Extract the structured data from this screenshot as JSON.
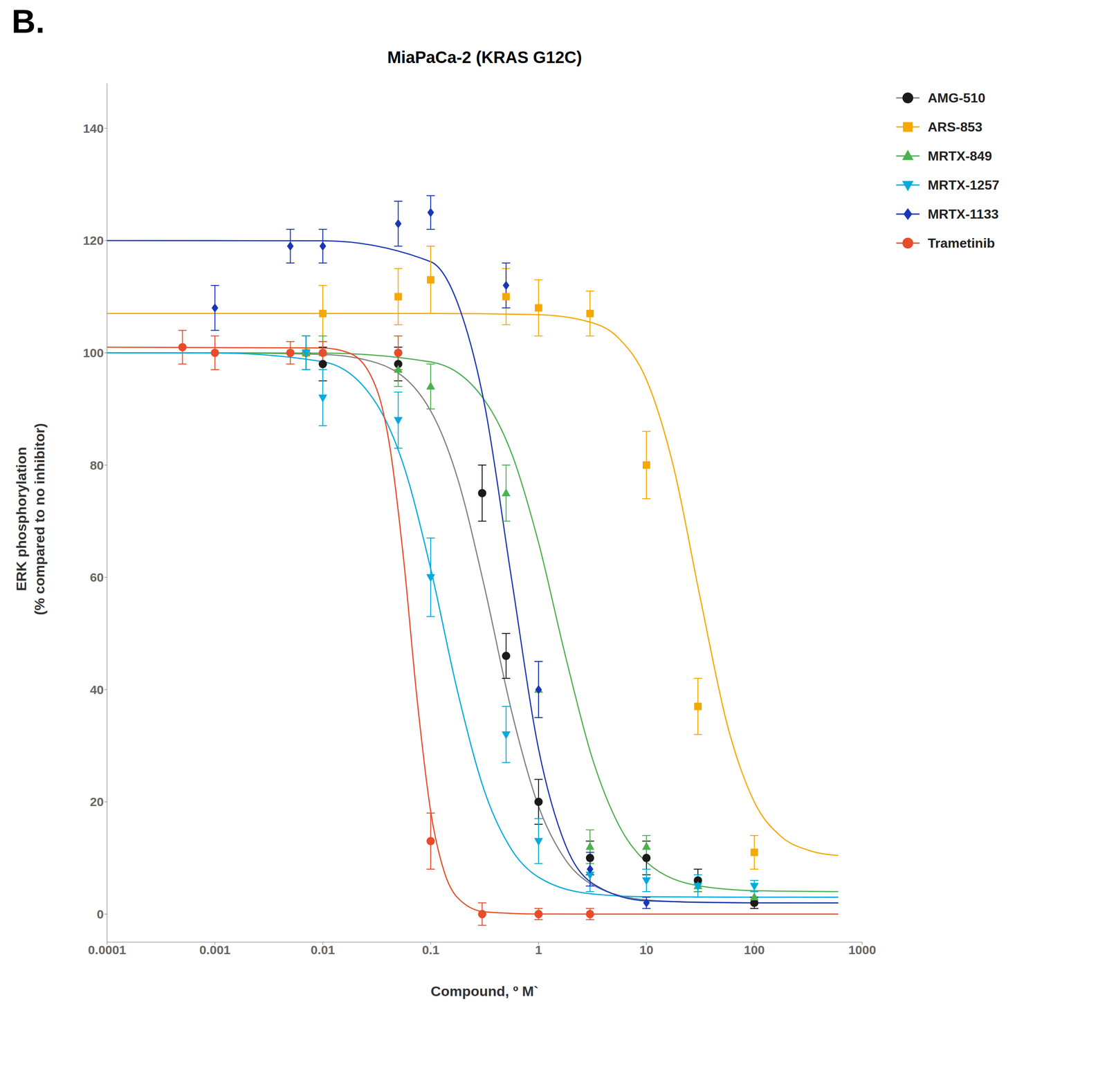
{
  "chart_data": {
    "type": "scatter",
    "title": "MiaPaCa-2 (KRAS G12C)",
    "panel_label": "B.",
    "xlabel": "Compound, º M`",
    "ylabel": "ERK phosphorylation\n(% compared to no inhibitor)",
    "log": "x",
    "xlim": [
      0.0001,
      1000
    ],
    "ylim": [
      -5,
      148
    ],
    "xticks": [
      0.0001,
      0.001,
      0.01,
      0.1,
      1,
      10,
      100,
      1000
    ],
    "yticks": [
      0,
      20,
      40,
      60,
      80,
      100,
      120,
      140
    ],
    "grid": false,
    "legend": "right",
    "series": [
      {
        "name": "AMG-510",
        "color": "#1a1a1a",
        "marker": "circle",
        "x": [
          0.007,
          0.01,
          0.05,
          0.3,
          0.5,
          1.0,
          3.0,
          10.0,
          30.0,
          100.0
        ],
        "values": [
          100,
          98,
          98,
          75,
          46,
          20,
          10,
          10,
          6,
          2
        ],
        "errors": [
          3,
          3,
          3,
          5,
          4,
          4,
          3,
          3,
          2,
          1
        ],
        "fit": {
          "type": "line",
          "color": "#808080",
          "x": [
            0.0001,
            0.001,
            0.01,
            0.03162,
            0.1,
            0.1778,
            0.3162,
            0.5623,
            1,
            1.778,
            3.162,
            10,
            31.62,
            100,
            600
          ],
          "values": [
            100.0,
            99.99,
            99.71,
            98.2,
            89.65,
            77.59,
            58.15,
            36.12,
            19.19,
            9.65,
            5.2,
            2.52,
            2.08,
            2.01,
            2.0
          ]
        }
      },
      {
        "name": "ARS-853",
        "color": "#F5A800",
        "marker": "square",
        "x": [
          0.007,
          0.01,
          0.05,
          0.1,
          0.5,
          1.0,
          3.0,
          10.0,
          30.0,
          100.0
        ],
        "values": [
          100,
          107,
          110,
          113,
          110,
          108,
          107,
          80,
          37,
          11
        ],
        "errors": [
          3,
          5,
          5,
          6,
          5,
          5,
          4,
          6,
          5,
          3
        ],
        "fit": {
          "type": "line",
          "color": "#F5A800",
          "x": [
            0.0001,
            0.01,
            0.1,
            1,
            3.162,
            5.623,
            10,
            17.78,
            31.62,
            56.23,
            100,
            177.8,
            316.2,
            600
          ],
          "values": [
            107.0,
            107.0,
            107.0,
            106.79,
            105.34,
            102.46,
            95.21,
            79.77,
            56.2,
            33.67,
            19.97,
            13.79,
            11.38,
            10.44
          ]
        }
      },
      {
        "name": "MRTX-849",
        "color": "#4CAF50",
        "marker": "triangle",
        "x": [
          0.007,
          0.01,
          0.05,
          0.1,
          0.5,
          1.0,
          3.0,
          10.0,
          30.0,
          100.0
        ],
        "values": [
          100,
          100,
          97,
          94,
          75,
          40,
          12,
          12,
          5,
          3
        ],
        "errors": [
          3,
          3,
          3,
          4,
          5,
          5,
          3,
          2,
          1,
          1
        ],
        "fit": {
          "type": "line",
          "color": "#4CAF50",
          "x": [
            0.0001,
            0.01,
            0.1,
            0.3162,
            0.5623,
            1,
            1.778,
            3.162,
            5.623,
            10,
            31.62,
            100,
            600
          ],
          "values": [
            100.0,
            99.95,
            98.37,
            91.53,
            82.08,
            66.17,
            45.91,
            27.64,
            15.63,
            9.27,
            4.98,
            4.18,
            4.01
          ]
        }
      },
      {
        "name": "MRTX-1257",
        "color": "#00AADD",
        "marker": "triangle-down",
        "x": [
          0.007,
          0.01,
          0.05,
          0.1,
          0.5,
          1.0,
          3.0,
          10.0,
          30.0,
          100.0
        ],
        "values": [
          100,
          92,
          88,
          60,
          32,
          13,
          7,
          6,
          5,
          5
        ],
        "errors": [
          3,
          5,
          5,
          7,
          5,
          4,
          3,
          2,
          2,
          1
        ],
        "fit": {
          "type": "line",
          "color": "#00AADD",
          "x": [
            0.0001,
            0.001,
            0.01,
            0.03162,
            0.05623,
            0.1,
            0.1778,
            0.3162,
            0.5623,
            1,
            3.162,
            10,
            100,
            600
          ],
          "values": [
            100.0,
            99.96,
            98.42,
            90.84,
            79.88,
            61.53,
            39.59,
            21.84,
            11.49,
            6.57,
            3.58,
            3.09,
            3.01,
            3.0
          ]
        }
      },
      {
        "name": "MRTX-1133",
        "color": "#1A35B5",
        "marker": "diamond",
        "x": [
          0.001,
          0.005,
          0.01,
          0.05,
          0.1,
          0.5,
          1.0,
          3.0,
          10.0
        ],
        "values": [
          108,
          119,
          119,
          123,
          125,
          112,
          40,
          8,
          2
        ],
        "errors": [
          4,
          3,
          3,
          4,
          3,
          4,
          5,
          3,
          1
        ],
        "fit": {
          "type": "line",
          "color": "#1A35B5",
          "x": [
            0.0001,
            0.01,
            0.1,
            0.1778,
            0.3162,
            0.5623,
            1,
            1.778,
            3.162,
            10,
            100,
            600
          ],
          "values": [
            120.0,
            119.96,
            116.23,
            108.83,
            90.69,
            59.69,
            29.41,
            12.3,
            5.47,
            2.36,
            2.0,
            2.0
          ]
        }
      },
      {
        "name": "Trametinib",
        "color": "#E84C2B",
        "marker": "circle",
        "x": [
          0.0005,
          0.001,
          0.005,
          0.01,
          0.05,
          0.1,
          0.3,
          1.0,
          3.0
        ],
        "values": [
          101,
          100,
          100,
          100,
          100,
          13,
          0,
          0,
          0
        ],
        "errors": [
          3,
          3,
          2,
          2,
          3,
          5,
          2,
          1,
          1
        ],
        "fit": {
          "type": "line",
          "color": "#E84C2B",
          "x": [
            0.0001,
            0.01,
            0.01778,
            0.03162,
            0.04217,
            0.05623,
            0.07499,
            0.1,
            0.1334,
            0.1778,
            0.3162,
            1,
            10,
            600
          ],
          "values": [
            101.0,
            100.86,
            99.93,
            93.49,
            82.79,
            63.03,
            38.11,
            18.31,
            7.55,
            2.9,
            0.4,
            0.01,
            0.0,
            0.0
          ]
        }
      }
    ]
  }
}
